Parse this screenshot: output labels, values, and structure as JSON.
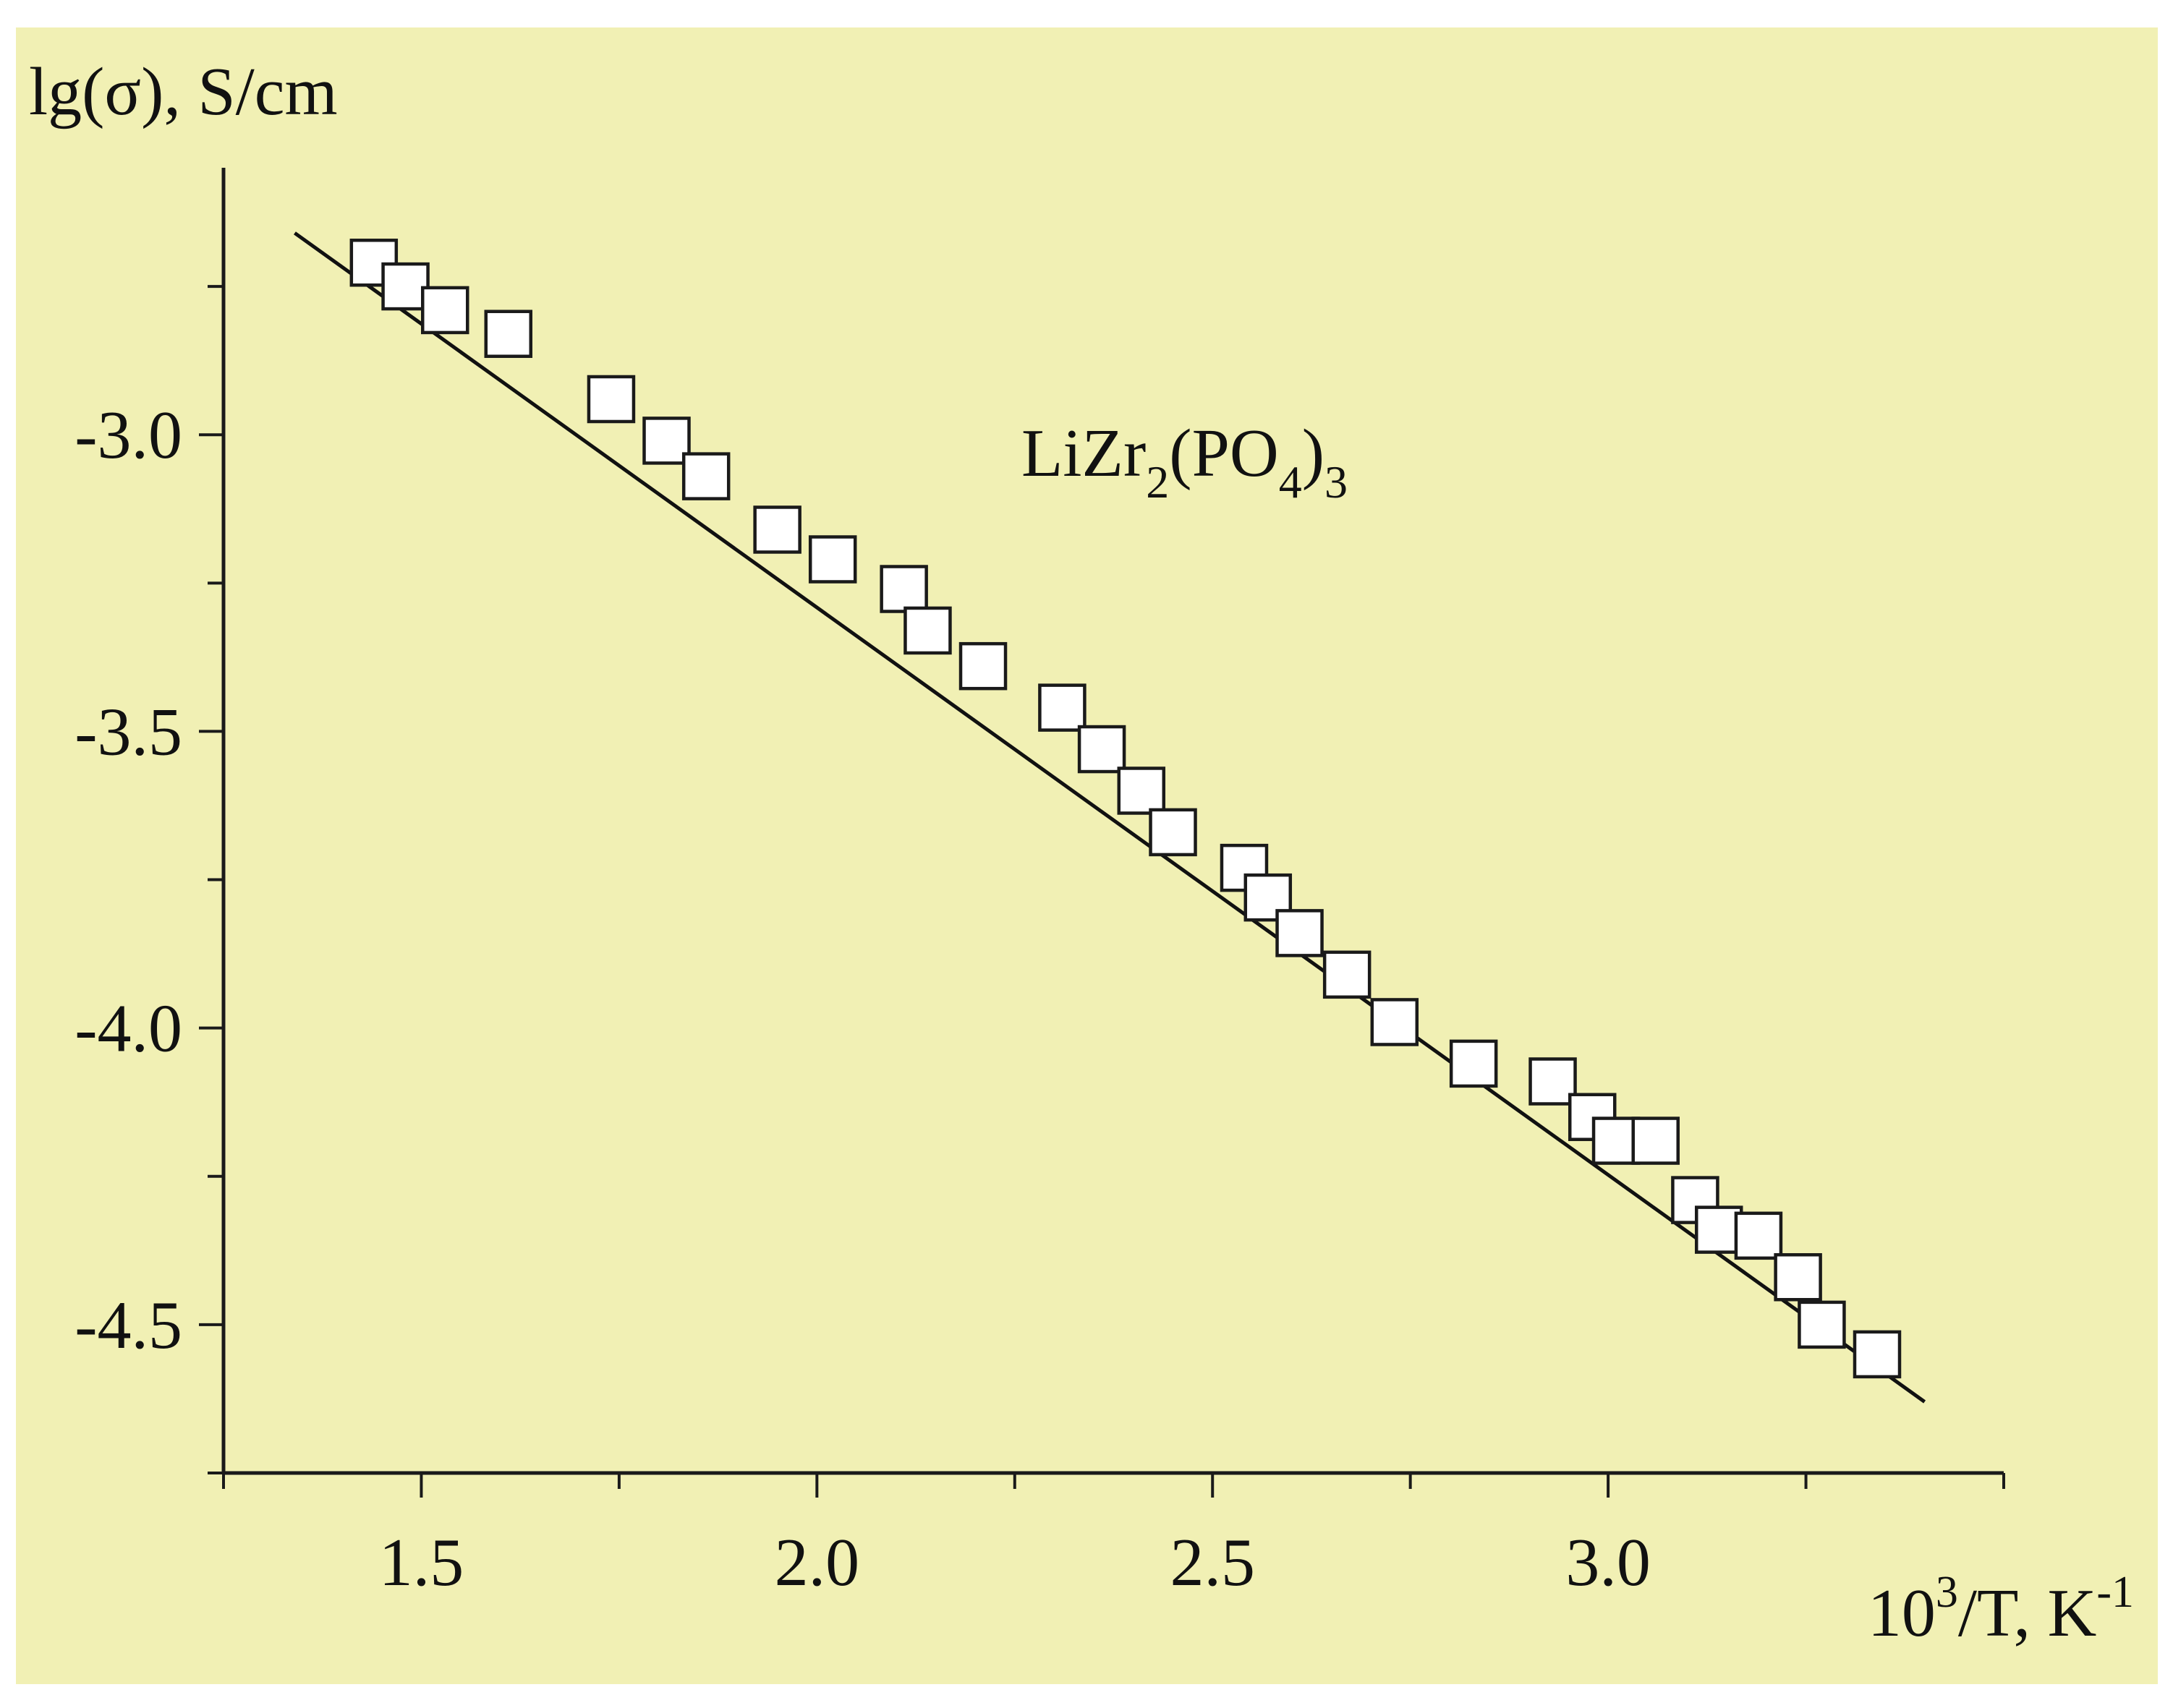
{
  "chart_data": {
    "type": "scatter",
    "ylabel": "lg(σ), S/cm",
    "xlabel": {
      "base": "10",
      "sup1": "3",
      "mid": "/T, K",
      "sup2": "-1"
    },
    "annotation": {
      "a": "LiZr",
      "s1": "2",
      "b": "(PO",
      "s2": "4",
      "c": ")",
      "s3": "3"
    },
    "xlim": [
      1.25,
      3.5
    ],
    "ylim": [
      -4.75,
      -2.55
    ],
    "x_ticks": [
      1.5,
      2.0,
      2.5,
      3.0
    ],
    "x_tick_labels": [
      "1.5",
      "2.0",
      "2.5",
      "3.0"
    ],
    "y_ticks": [
      -3.0,
      -3.5,
      -4.0,
      -4.5
    ],
    "y_tick_labels": [
      "-3.0",
      "-3.5",
      "-4.0",
      "-4.5"
    ],
    "grid": false,
    "legend": "none",
    "colors": {
      "background": "#f1f0b4",
      "page": "#ffffff",
      "axes": "#1a1a1a",
      "marker_fill": "#ffffff",
      "marker_edge": "#1a1a1a",
      "fit_line": "#111111"
    },
    "series": [
      {
        "marker": "square",
        "x": [
          1.44,
          1.48,
          1.53,
          1.61,
          1.74,
          1.81,
          1.86,
          1.95,
          2.02,
          2.11,
          2.14,
          2.21,
          2.31,
          2.36,
          2.41,
          2.45,
          2.54,
          2.57,
          2.61,
          2.67,
          2.73,
          2.83,
          2.93,
          2.98,
          3.01,
          3.06,
          3.11,
          3.14,
          3.19,
          3.24,
          3.27,
          3.34
        ],
        "y": [
          -2.71,
          -2.75,
          -2.79,
          -2.83,
          -2.94,
          -3.01,
          -3.07,
          -3.16,
          -3.21,
          -3.26,
          -3.33,
          -3.39,
          -3.46,
          -3.53,
          -3.6,
          -3.67,
          -3.73,
          -3.78,
          -3.84,
          -3.91,
          -3.99,
          -4.06,
          -4.09,
          -4.15,
          -4.19,
          -4.19,
          -4.29,
          -4.34,
          -4.35,
          -4.42,
          -4.5,
          -4.55
        ]
      },
      {
        "type": "line",
        "x": [
          1.34,
          3.4
        ],
        "y": [
          -2.66,
          -4.63
        ]
      }
    ]
  }
}
